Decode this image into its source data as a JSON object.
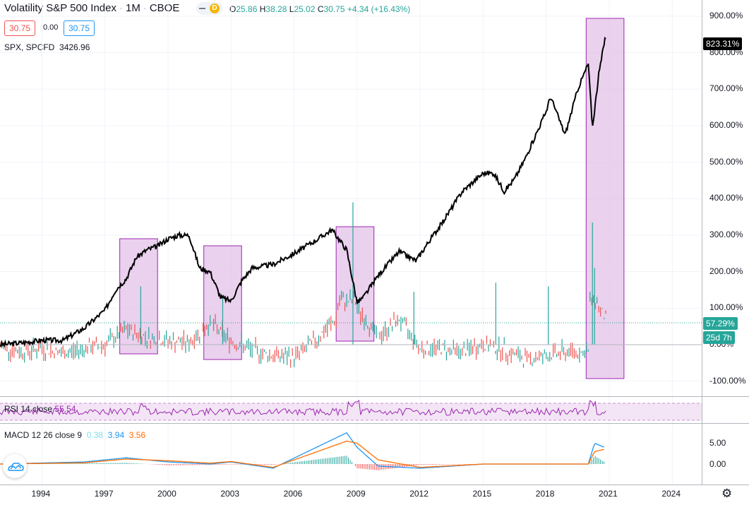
{
  "header": {
    "symbol_title": "Volatility S&P 500 Index",
    "interval": "1M",
    "exchange": "CBOE",
    "badge": "D",
    "open_label": "O",
    "open": "25.86",
    "high_label": "H",
    "high": "38.28",
    "low_label": "L",
    "low": "25.02",
    "close_label": "C",
    "close": "30.75",
    "change": "+4.34 (+16.43%)",
    "sell_price": "30.75",
    "spread": "0.00",
    "buy_price": "30.75"
  },
  "compare": {
    "label": "SPX, SPCFD",
    "value": "3426.96"
  },
  "price_axis": {
    "ticks": [
      "900.00%",
      "800.00%",
      "700.00%",
      "600.00%",
      "500.00%",
      "400.00%",
      "300.00%",
      "200.00%",
      "100.00%",
      "0.00%",
      "-100.00%"
    ],
    "spx_tag": "823.31%",
    "vix_tag": "57.29%",
    "countdown_tag": "25d 7h"
  },
  "rsi": {
    "label": "RSI 14 close",
    "value": "55.54"
  },
  "macd": {
    "label": "MACD 12 26 close 9",
    "hist_value": "0.38",
    "macd_value": "3.94",
    "signal_value": "3.56",
    "ticks": [
      "5.00",
      "0.00"
    ]
  },
  "time_axis": {
    "ticks": [
      "1994",
      "1997",
      "2000",
      "2003",
      "2006",
      "2009",
      "2012",
      "2015",
      "2018",
      "2021",
      "2024"
    ]
  },
  "colors": {
    "up": "#26a69a",
    "down": "#ef5350",
    "spx_line": "#000000",
    "highlight_fill": "#e1bee7",
    "highlight_border": "#9c27b0",
    "rsi_line": "#9c27b0",
    "macd_line": "#2196f3",
    "signal_line": "#ff6d00",
    "vix_dotted": "#26a69a"
  },
  "chart_data": [
    {
      "type": "line",
      "title": "Volatility S&P 500 Index · 1M · CBOE",
      "ylabel": "%",
      "ylim": [
        -100,
        900
      ],
      "series": [
        {
          "name": "SPX, SPCFD",
          "x": [
            1992.0,
            1993.0,
            1994.0,
            1995.0,
            1996.0,
            1997.0,
            1997.5,
            1998.0,
            1998.5,
            1999.0,
            1999.5,
            2000.0,
            2000.5,
            2001.0,
            2001.5,
            2002.0,
            2002.5,
            2003.0,
            2003.5,
            2004.0,
            2005.0,
            2006.0,
            2007.0,
            2007.8,
            2008.5,
            2009.0,
            2009.3,
            2010.0,
            2011.0,
            2011.8,
            2012.5,
            2013.0,
            2014.0,
            2015.0,
            2015.5,
            2016.0,
            2016.5,
            2017.0,
            2018.0,
            2018.2,
            2018.9,
            2019.5,
            2020.0,
            2020.2,
            2020.5,
            2020.8,
            2021.0
          ],
          "values": [
            0,
            5,
            12,
            12,
            45,
            95,
            150,
            180,
            240,
            260,
            270,
            290,
            300,
            300,
            210,
            200,
            130,
            120,
            175,
            210,
            220,
            250,
            285,
            315,
            260,
            115,
            130,
            190,
            255,
            230,
            290,
            330,
            420,
            470,
            470,
            420,
            455,
            510,
            640,
            680,
            575,
            700,
            770,
            595,
            740,
            840,
            823
          ]
        },
        {
          "name": "Volatility S&P 500 Index",
          "x": [
            1992,
            1993,
            1994,
            1995,
            1996,
            1997,
            1998,
            1999,
            2000,
            2001,
            2002,
            2003,
            2004,
            2005,
            2006,
            2007,
            2008,
            2008.8,
            2009,
            2010,
            2011,
            2012,
            2013,
            2014,
            2015,
            2016,
            2017,
            2018,
            2019,
            2020,
            2020.2,
            2020.5,
            2021
          ],
          "values": [
            -5,
            -20,
            -10,
            -25,
            -10,
            0,
            40,
            20,
            10,
            5,
            60,
            10,
            -15,
            -30,
            -35,
            10,
            70,
            390,
            100,
            20,
            70,
            -10,
            -10,
            -20,
            0,
            -15,
            -40,
            -30,
            -20,
            -20,
            335,
            100,
            57.29
          ]
        }
      ],
      "highlights": [
        [
          1997.7,
          1999.5
        ],
        [
          2001.7,
          2003.5
        ],
        [
          2008.0,
          2009.8
        ],
        [
          2019.9,
          2021.7
        ]
      ]
    },
    {
      "type": "line",
      "title": "RSI 14 close",
      "series": [
        {
          "name": "RSI",
          "values": [
            55.54
          ]
        }
      ]
    },
    {
      "type": "line",
      "title": "MACD 12 26 close 9",
      "ylim": [
        -2,
        8
      ],
      "series": [
        {
          "name": "MACD",
          "x": [
            1992,
            1996,
            1998,
            2000,
            2002,
            2003,
            2005,
            2008.5,
            2009,
            2010,
            2012,
            2015,
            2018,
            2020,
            2020.3,
            2020.8
          ],
          "values": [
            0,
            0.5,
            1.5,
            0.5,
            0,
            0.5,
            -1,
            7.5,
            4,
            -0.5,
            -1,
            0,
            0,
            0,
            5,
            3.94
          ]
        },
        {
          "name": "Signal",
          "x": [
            1992,
            1996,
            1998,
            2000,
            2002,
            2003,
            2005,
            2008.5,
            2009,
            2010,
            2012,
            2015,
            2018,
            2020,
            2020.3,
            2020.8
          ],
          "values": [
            0,
            0.3,
            1.2,
            0.8,
            0.2,
            0.6,
            -0.8,
            5.5,
            5,
            1,
            -0.8,
            0,
            0,
            0,
            3,
            3.56
          ]
        }
      ],
      "hist_last": 0.38
    }
  ]
}
